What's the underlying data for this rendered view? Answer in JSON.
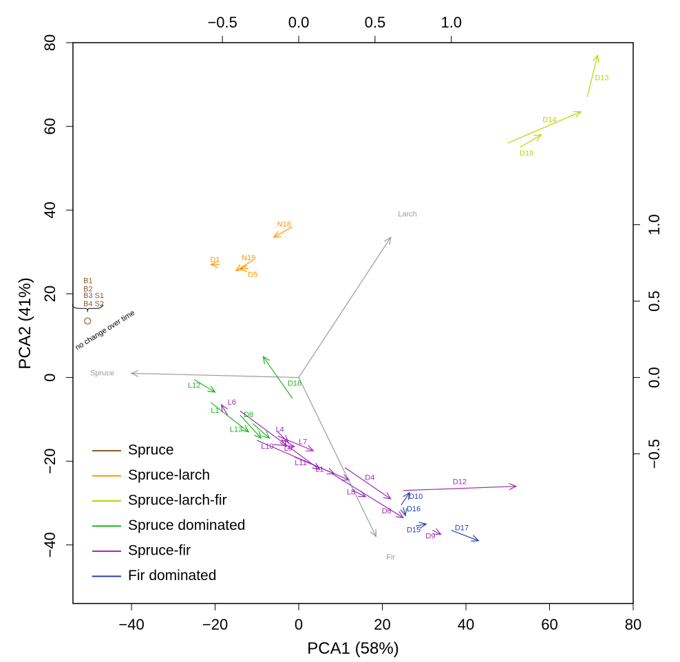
{
  "chart_data": {
    "type": "biplot",
    "xlabel": "PCA1 (58%)",
    "ylabel": "PCA2 (41%)",
    "xlim": [
      -54,
      80
    ],
    "ylim": [
      -54,
      80
    ],
    "x_ticks": [
      -40,
      -20,
      0,
      20,
      40,
      60,
      80
    ],
    "y_ticks": [
      -40,
      -20,
      0,
      20,
      40,
      60,
      80
    ],
    "top_ticks": [
      "-0.5",
      "0.0",
      "0.5",
      "1.0"
    ],
    "top_tick_values": [
      -0.5,
      0,
      0.5,
      1.0
    ],
    "right_ticks": [
      "-0.5",
      "0.0",
      "0.5",
      "1.0"
    ],
    "right_tick_values": [
      -0.5,
      0,
      0.5,
      1.0
    ],
    "secondary_axis_scale": 36.5,
    "loadings": [
      {
        "label": "Spruce",
        "x": -40,
        "y": 1,
        "label_x": -47,
        "label_y": 1
      },
      {
        "label": "Larch",
        "x": 22,
        "y": 33.5,
        "label_x": 26,
        "label_y": 39
      },
      {
        "label": "Fir",
        "x": 18.5,
        "y": -38,
        "label_x": 22,
        "label_y": -43
      }
    ],
    "series": [
      {
        "name": "Spruce",
        "color": "#8B5A2B",
        "arrows": [],
        "labels": [
          {
            "text": "B1",
            "x": -51.5,
            "y": 23
          },
          {
            "text": "B2",
            "x": -51.5,
            "y": 21
          },
          {
            "text": "B3 S1",
            "x": -51.5,
            "y": 19.5
          },
          {
            "text": "B4 S2",
            "x": -51.5,
            "y": 17.5
          }
        ],
        "points": [
          {
            "x": -50.5,
            "y": 13.5
          }
        ]
      },
      {
        "name": "Spruce-larch",
        "color": "#FF9400",
        "arrows": [
          {
            "from": [
              -1.5,
              36
            ],
            "to": [
              -6,
              33.5
            ],
            "label": "N18",
            "label_x": -3.5,
            "label_y": 36.5
          },
          {
            "from": [
              -19,
              27
            ],
            "to": [
              -21,
              27
            ],
            "label": "D1",
            "label_x": -20,
            "label_y": 28
          },
          {
            "from": [
              -11,
              28
            ],
            "to": [
              -15,
              25.5
            ],
            "label": "N19",
            "label_x": -12,
            "label_y": 28.5
          },
          {
            "from": [
              -12,
              26
            ],
            "to": [
              -14,
              26
            ],
            "label": "D5",
            "label_x": -11,
            "label_y": 24.5
          }
        ]
      },
      {
        "name": "Spruce-larch-fir",
        "color": "#B9D400",
        "arrows": [
          {
            "from": [
              69,
              67
            ],
            "to": [
              71.5,
              77
            ],
            "label": "D13",
            "label_x": 72.5,
            "label_y": 71.5
          },
          {
            "from": [
              50,
              56
            ],
            "to": [
              67.5,
              63.5
            ],
            "label": "D14",
            "label_x": 60,
            "label_y": 61.5
          },
          {
            "from": [
              53,
              55
            ],
            "to": [
              58,
              58
            ],
            "label": "D19",
            "label_x": 54.5,
            "label_y": 53.5
          }
        ]
      },
      {
        "name": "Spruce dominated",
        "color": "#1DB31D",
        "arrows": [
          {
            "from": [
              -1.5,
              -5
            ],
            "to": [
              -8.5,
              5
            ],
            "label": "D18",
            "label_x": -1,
            "label_y": -1.5
          },
          {
            "from": [
              -25,
              -0.5
            ],
            "to": [
              -20,
              -3.5
            ],
            "label": "L12",
            "label_x": -25,
            "label_y": -2
          },
          {
            "from": [
              -21,
              -6
            ],
            "to": [
              -12,
              -13
            ],
            "label": "L1",
            "label_x": -20,
            "label_y": -8
          },
          {
            "from": [
              -14,
              -9
            ],
            "to": [
              -9,
              -14.5
            ],
            "label": "D8",
            "label_x": -12,
            "label_y": -9
          },
          {
            "from": [
              -11,
              -11
            ],
            "to": [
              -7,
              -14.5
            ],
            "label": "L13",
            "label_x": -15,
            "label_y": -12.5
          }
        ]
      },
      {
        "name": "Spruce-fir",
        "color": "#9C2AB5",
        "arrows": [
          {
            "from": [
              -17,
              -9
            ],
            "to": [
              -18.5,
              -6.5
            ],
            "label": "L6",
            "label_x": -16,
            "label_y": -6
          },
          {
            "from": [
              -14,
              -8
            ],
            "to": [
              5,
              -22
            ],
            "label": "L1",
            "label_x": 5,
            "label_y": -22
          },
          {
            "from": [
              -5,
              -13
            ],
            "to": [
              -2.5,
              -15.5
            ],
            "label": "L4",
            "label_x": -4.5,
            "label_y": -12.5
          },
          {
            "from": [
              -4,
              -15
            ],
            "to": [
              -3,
              -16.5
            ],
            "label": "L9",
            "label_x": -2.5,
            "label_y": -17
          },
          {
            "from": [
              -5,
              -14
            ],
            "to": [
              3.5,
              -17.5
            ],
            "label": "L7",
            "label_x": 1,
            "label_y": -15.5
          },
          {
            "from": [
              -6,
              -16
            ],
            "to": [
              -1,
              -16.5
            ],
            "label": "L10",
            "label_x": -7.5,
            "label_y": -16.5
          },
          {
            "from": [
              -1,
              -19
            ],
            "to": [
              8.5,
              -23
            ],
            "label": "L11",
            "label_x": 0.5,
            "label_y": -20.5
          },
          {
            "from": [
              11,
              -21.5
            ],
            "to": [
              22,
              -29
            ],
            "label": "D4",
            "label_x": 17,
            "label_y": -24
          },
          {
            "from": [
              -10,
              -15
            ],
            "to": [
              12,
              -24.5
            ],
            "label": "L8",
            "label_x": 12.5,
            "label_y": -27.5
          },
          {
            "from": [
              13,
              -27
            ],
            "to": [
              16,
              -28.5
            ],
            "label": "",
            "label_x": 0,
            "label_y": 0
          },
          {
            "from": [
              8,
              -23
            ],
            "to": [
              25,
              -33.5
            ],
            "label": "D6",
            "label_x": 21,
            "label_y": -32
          },
          {
            "from": [
              25,
              -27
            ],
            "to": [
              52,
              -26
            ],
            "label": "D12",
            "label_x": 38.5,
            "label_y": -25
          },
          {
            "from": [
              32,
              -36.5
            ],
            "to": [
              34,
              -37.5
            ],
            "label": "D9",
            "label_x": 31.5,
            "label_y": -38
          }
        ]
      },
      {
        "name": "Fir dominated",
        "color": "#2641A6",
        "arrows": [
          {
            "from": [
              24.5,
              -30.5
            ],
            "to": [
              26.5,
              -27.5
            ],
            "label": "D10",
            "label_x": 28,
            "label_y": -28.5
          },
          {
            "from": [
              25,
              -31
            ],
            "to": [
              25.5,
              -33
            ],
            "label": "D16",
            "label_x": 27.5,
            "label_y": -31.5
          },
          {
            "from": [
              28,
              -35.5
            ],
            "to": [
              30.5,
              -35
            ],
            "label": "D15",
            "label_x": 27.5,
            "label_y": -36.5
          },
          {
            "from": [
              36.5,
              -36.5
            ],
            "to": [
              43,
              -39
            ],
            "label": "D17",
            "label_x": 39,
            "label_y": -36
          }
        ]
      }
    ],
    "annotation": {
      "text": "no change over time",
      "x": -53,
      "y": 6.5,
      "angle": -32
    },
    "legend_placement": "bottom-left"
  }
}
